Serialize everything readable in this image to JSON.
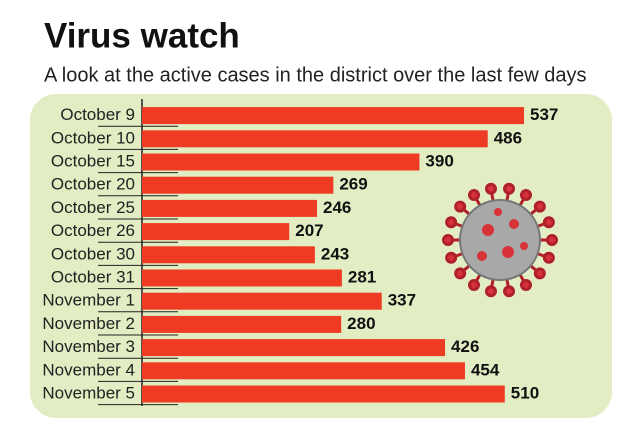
{
  "chart_data": {
    "type": "bar",
    "orientation": "horizontal",
    "title": "Virus watch",
    "subtitle": "A look at the active cases in the district over the last few days",
    "categories": [
      "October 9",
      "October 10",
      "October 15",
      "October 20",
      "October 25",
      "October 26",
      "October 30",
      "October 31",
      "November 1",
      "November 2",
      "November 3",
      "November 4",
      "November 5"
    ],
    "values": [
      537,
      486,
      390,
      269,
      246,
      207,
      243,
      281,
      337,
      280,
      426,
      454,
      510
    ],
    "color": "#ee3b24"
  }
}
